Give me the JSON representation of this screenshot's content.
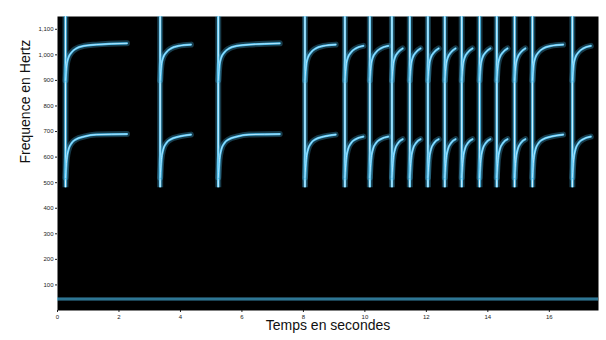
{
  "chart_data": {
    "type": "spectrogram",
    "xlabel": "Temps en secondes",
    "ylabel": "Frequence en Hertz",
    "xlim": [
      0,
      17.6
    ],
    "ylim": [
      0,
      1150
    ],
    "xticks": [
      0,
      2,
      4,
      6,
      8,
      10,
      12,
      14,
      16
    ],
    "yticks": [
      100,
      200,
      300,
      400,
      500,
      600,
      700,
      800,
      900,
      1000,
      1100
    ],
    "color": "#4cc0f2",
    "onsets": [
      0.26,
      3.34,
      5.23,
      8.05,
      9.35,
      10.16,
      10.88,
      11.46,
      12.05,
      12.6,
      13.15,
      13.73,
      14.29,
      14.87,
      15.45,
      16.75
    ],
    "ends": [
      3.0,
      5.1,
      7.9,
      9.25,
      10.08,
      10.8,
      11.4,
      12.0,
      12.55,
      13.1,
      13.68,
      14.24,
      14.82,
      15.4,
      16.6,
      17.55
    ],
    "onset_range": [
      480,
      1150
    ],
    "contour": {
      "t": [
        0,
        0.04,
        0.1,
        0.2,
        0.35,
        0.6,
        1.0,
        2.0,
        3.0
      ],
      "harmonic_1": [
        520,
        590,
        630,
        655,
        670,
        680,
        688,
        690,
        690
      ],
      "harmonic_2": [
        900,
        960,
        990,
        1010,
        1025,
        1035,
        1040,
        1045,
        1045
      ]
    },
    "noise_band": 45
  }
}
